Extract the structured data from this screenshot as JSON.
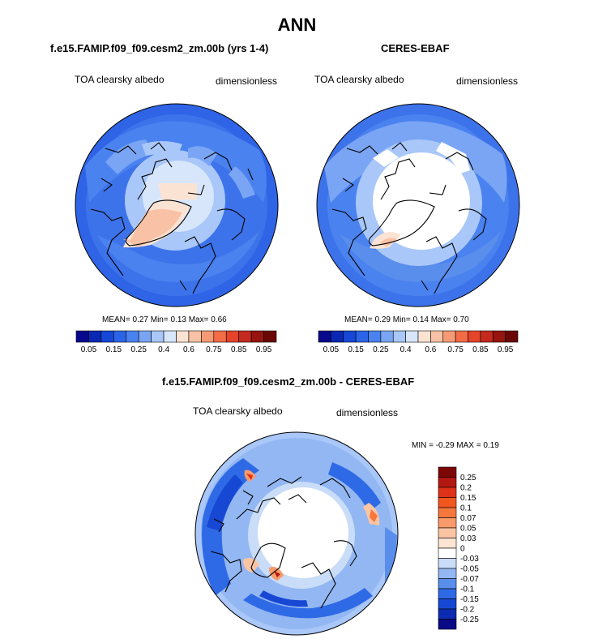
{
  "title": "ANN",
  "panels": [
    {
      "id": "model",
      "title": "f.e15.FAMIP.f09_f09.cesm2_zm.00b (yrs 1-4)",
      "left_label": "TOA clearsky albedo",
      "right_label": "dimensionless",
      "stats": "MEAN=   0.27  Min=   0.13  Max=   0.66"
    },
    {
      "id": "obs",
      "title": "CERES-EBAF",
      "left_label": "TOA clearsky albedo",
      "right_label": "dimensionless",
      "stats": "MEAN=   0.29  Min=   0.14  Max=   0.70"
    },
    {
      "id": "diff",
      "title": "f.e15.FAMIP.f09_f09.cesm2_zm.00b - CERES-EBAF",
      "left_label": "TOA clearsky albedo",
      "right_label": "dimensionless",
      "stats": "MIN =  -0.29 MAX =   0.19"
    }
  ],
  "colorbar_abs": {
    "labels": [
      "0.05",
      "0.15",
      "0.25",
      "0.4",
      "0.6",
      "0.75",
      "0.85",
      "0.95"
    ],
    "colors": [
      "#08088c",
      "#0b28b4",
      "#1647d6",
      "#2c64e8",
      "#4a82ef",
      "#7aa5f4",
      "#a9c7f8",
      "#d7e6fb",
      "#fbe3d4",
      "#f9c2a6",
      "#f69a76",
      "#f26c45",
      "#e5442a",
      "#c42a1e",
      "#97140f",
      "#6b0606"
    ]
  },
  "colorbar_diff": {
    "labels": [
      "0.25",
      "0.2",
      "0.15",
      "0.1",
      "0.07",
      "0.05",
      "0.03",
      "0",
      "-0.03",
      "-0.05",
      "-0.07",
      "-0.1",
      "-0.15",
      "-0.2",
      "-0.25"
    ],
    "colors": [
      "#7d0707",
      "#b2180f",
      "#dd3217",
      "#f2561f",
      "#f6773c",
      "#f89a6a",
      "#fbc4a3",
      "#fde4d3",
      "#ffffff",
      "#c9dcf8",
      "#93b7f2",
      "#5a8eec",
      "#2f6ae6",
      "#1748d4",
      "#0b2cb0",
      "#080a86"
    ]
  }
}
